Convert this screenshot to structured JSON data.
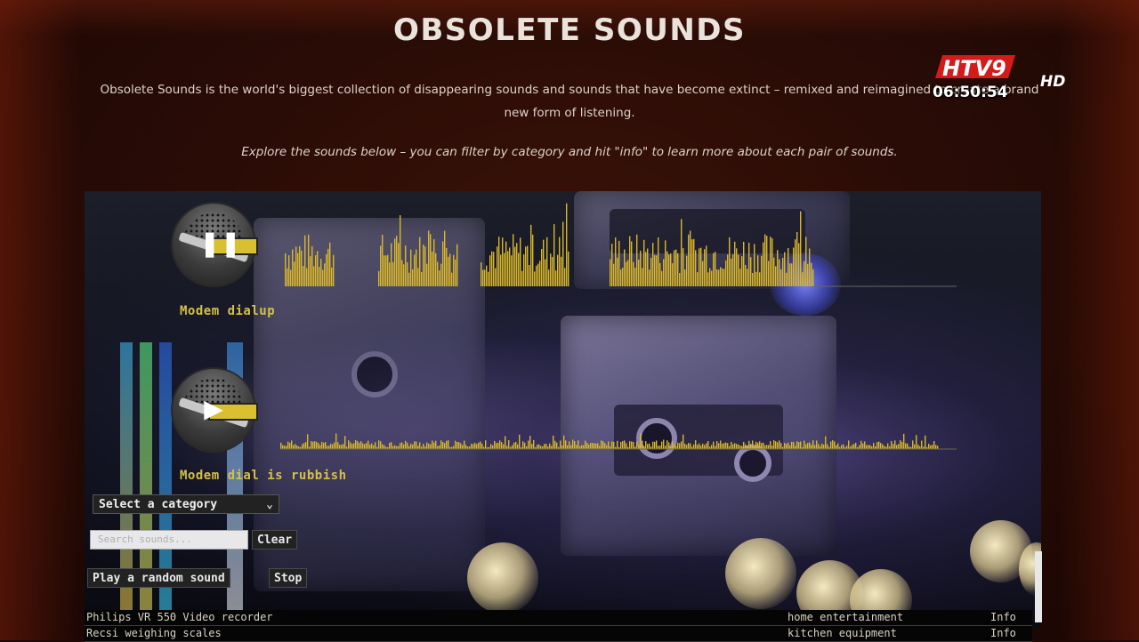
{
  "page": {
    "title": "OBSOLETE SOUNDS",
    "intro_line1": "Obsolete Sounds is the world's biggest collection of disappearing sounds and sounds that have become extinct – remixed and reimagined to create a brand",
    "intro_line2": "new form of listening.",
    "explore": "Explore the sounds below – you can filter by category and hit \"info\" to learn more about each pair of sounds."
  },
  "broadcast": {
    "logo_text": "HTV9",
    "hd": "HD",
    "clock": "06:50:54"
  },
  "players": [
    {
      "control": "❚❚",
      "control_icon": "pause-icon",
      "label": "Modem dialup"
    },
    {
      "control": "▶",
      "control_icon": "play-icon",
      "label": "Modem dial is rubbish"
    }
  ],
  "filters": {
    "category_selected": "Select a category",
    "search_placeholder": "Search sounds...",
    "clear_label": "Clear",
    "random_label": "Play a random sound",
    "stop_label": "Stop"
  },
  "list": [
    {
      "name": "Philips VR 550 Video recorder",
      "category": "home entertainment",
      "info": "Info"
    },
    {
      "name": "Recsi weighing scales",
      "category": "kitchen equipment",
      "info": "Info"
    }
  ],
  "colors": {
    "accent": "#d4c046",
    "background": "#2a0c06",
    "waveform": "#d9b72a"
  }
}
